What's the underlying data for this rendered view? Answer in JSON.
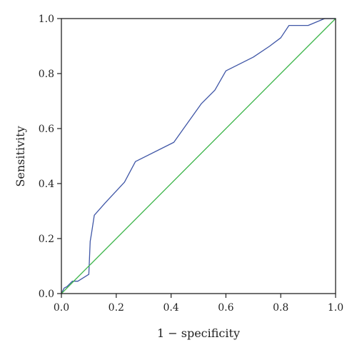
{
  "chart_data": {
    "type": "line",
    "title": "",
    "xlabel": "1 − specificity",
    "ylabel": "Sensitivity",
    "xlim": [
      0.0,
      1.0
    ],
    "ylim": [
      0.0,
      1.0
    ],
    "x_ticks": [
      "0.0",
      "0.2",
      "0.4",
      "0.6",
      "0.8",
      "1.0"
    ],
    "y_ticks": [
      "0.0",
      "0.2",
      "0.4",
      "0.6",
      "0.8",
      "1.0"
    ],
    "grid": false,
    "legend": "none",
    "series": [
      {
        "color": "#3f56a6",
        "x": [
          0.0,
          0.01,
          0.02,
          0.04,
          0.06,
          0.1,
          0.105,
          0.11,
          0.12,
          0.16,
          0.23,
          0.27,
          0.41,
          0.51,
          0.56,
          0.6,
          0.7,
          0.76,
          0.8,
          0.83,
          0.9,
          0.96,
          1.0
        ],
        "y": [
          0.0,
          0.02,
          0.025,
          0.045,
          0.045,
          0.07,
          0.19,
          0.22,
          0.285,
          0.33,
          0.405,
          0.48,
          0.55,
          0.69,
          0.74,
          0.81,
          0.86,
          0.9,
          0.93,
          0.975,
          0.975,
          1.0,
          1.0
        ]
      },
      {
        "color": "#3cb54a",
        "x": [
          0.0,
          1.0
        ],
        "y": [
          0.0,
          1.0
        ]
      }
    ]
  }
}
